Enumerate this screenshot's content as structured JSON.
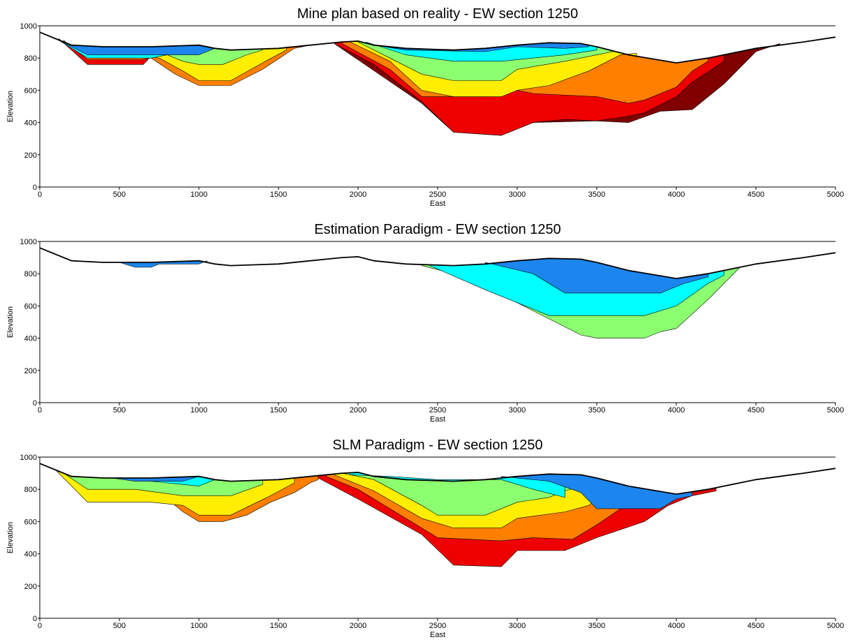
{
  "chart_data": [
    {
      "type": "section",
      "title": "Mine plan based on reality - EW section 1250",
      "xlabel": "East",
      "ylabel": "Elevation",
      "xlim": [
        0,
        5000
      ],
      "ylim": [
        0,
        1000
      ],
      "xticks": [
        0,
        500,
        1000,
        1500,
        2000,
        2500,
        3000,
        3500,
        4000,
        4500,
        5000
      ],
      "yticks": [
        0,
        200,
        400,
        600,
        800,
        1000
      ],
      "topography": {
        "color": "#000000",
        "x": [
          0,
          100,
          200,
          400,
          700,
          1000,
          1100,
          1200,
          1500,
          1700,
          1900,
          2000,
          2100,
          2300,
          2600,
          2800,
          3000,
          3200,
          3400,
          3500,
          3700,
          4000,
          4200,
          4500,
          4800,
          5000
        ],
        "y": [
          960,
          920,
          880,
          870,
          870,
          880,
          860,
          850,
          860,
          880,
          900,
          905,
          880,
          860,
          850,
          860,
          880,
          895,
          890,
          870,
          820,
          770,
          800,
          860,
          900,
          930
        ]
      },
      "series": [
        {
          "color": "#ee0000",
          "x": [
            120,
            300,
            650,
            680
          ],
          "y": [
            920,
            760,
            760,
            790
          ]
        },
        {
          "color": "#ff7f00",
          "x": [
            150,
            300,
            640,
            700,
            850,
            1000,
            1200,
            1400,
            1600,
            1700
          ],
          "y": [
            910,
            790,
            790,
            800,
            700,
            630,
            630,
            730,
            860,
            880
          ]
        },
        {
          "color": "#ffee00",
          "x": [
            680,
            750,
            900,
            1000,
            1200,
            1400,
            1550
          ],
          "y": [
            810,
            800,
            720,
            660,
            660,
            770,
            850
          ]
        },
        {
          "color": "#8cff70",
          "x": [
            700,
            800,
            900,
            1000,
            1150,
            1300,
            1400
          ],
          "y": [
            820,
            820,
            780,
            760,
            760,
            820,
            850
          ]
        },
        {
          "color": "#00ffff",
          "x": [
            120,
            300,
            700,
            800
          ],
          "y": [
            910,
            800,
            800,
            820
          ]
        },
        {
          "color": "#1c86ee",
          "x": [
            100,
            300,
            700,
            1000,
            1100,
            1200
          ],
          "y": [
            920,
            820,
            820,
            820,
            860,
            850
          ]
        },
        {
          "color": "#800000",
          "x": [
            1850,
            2400,
            2600,
            2900,
            3100,
            3500,
            3700,
            3900,
            4100,
            4300,
            4500,
            4650
          ],
          "y": [
            890,
            520,
            340,
            320,
            400,
            410,
            400,
            470,
            480,
            640,
            840,
            890
          ]
        },
        {
          "color": "#ee0000",
          "x": [
            1850,
            2100,
            2400,
            2600,
            2900,
            3100,
            3300,
            3500,
            3700,
            3800,
            4000,
            4100,
            4300
          ],
          "y": [
            890,
            760,
            530,
            340,
            320,
            400,
            420,
            410,
            440,
            460,
            560,
            650,
            780
          ]
        },
        {
          "color": "#ff7f00",
          "x": [
            1900,
            2200,
            2400,
            2800,
            2900,
            3100,
            3500,
            3700,
            3800,
            4000,
            4100,
            4200
          ],
          "y": [
            890,
            730,
            560,
            560,
            620,
            580,
            560,
            520,
            540,
            620,
            720,
            780
          ]
        },
        {
          "color": "#ffee00",
          "x": [
            1950,
            2200,
            2400,
            2600,
            2900,
            3000,
            3200,
            3450,
            3650,
            3750
          ],
          "y": [
            900,
            780,
            600,
            560,
            560,
            600,
            630,
            720,
            820,
            830
          ]
        },
        {
          "color": "#8cff70",
          "x": [
            2000,
            2200,
            2400,
            2600,
            2900,
            3000,
            3300,
            3500,
            3600
          ],
          "y": [
            900,
            800,
            700,
            660,
            660,
            730,
            780,
            820,
            840
          ]
        },
        {
          "color": "#00ffff",
          "x": [
            2050,
            2300,
            2600,
            2900,
            3100,
            3300,
            3500
          ],
          "y": [
            900,
            820,
            780,
            780,
            800,
            820,
            850
          ]
        },
        {
          "color": "#1c86ee",
          "x": [
            2100,
            2300,
            2800,
            3000,
            3300,
            3450
          ],
          "y": [
            880,
            850,
            840,
            870,
            860,
            870
          ]
        }
      ]
    },
    {
      "type": "section",
      "title": "Estimation Paradigm - EW section 1250",
      "xlabel": "East",
      "ylabel": "Elevation",
      "xlim": [
        0,
        5000
      ],
      "ylim": [
        0,
        1000
      ],
      "xticks": [
        0,
        500,
        1000,
        1500,
        2000,
        2500,
        3000,
        3500,
        4000,
        4500,
        5000
      ],
      "yticks": [
        0,
        200,
        400,
        600,
        800,
        1000
      ],
      "topography": {
        "color": "#000000",
        "x": [
          0,
          100,
          200,
          400,
          700,
          1000,
          1100,
          1200,
          1500,
          1700,
          1900,
          2000,
          2100,
          2300,
          2600,
          2800,
          3000,
          3200,
          3400,
          3500,
          3700,
          4000,
          4200,
          4500,
          4800,
          5000
        ],
        "y": [
          960,
          920,
          880,
          870,
          870,
          880,
          860,
          850,
          860,
          880,
          900,
          905,
          880,
          860,
          850,
          860,
          880,
          895,
          890,
          870,
          820,
          770,
          800,
          860,
          900,
          930
        ]
      },
      "series": [
        {
          "color": "#1c86ee",
          "x": [
            500,
            600,
            700,
            750,
            1000,
            1050
          ],
          "y": [
            870,
            840,
            840,
            860,
            860,
            880
          ]
        },
        {
          "color": "#8cff70",
          "x": [
            2400,
            2600,
            3000,
            3400,
            3500,
            3800,
            3900,
            4000,
            4200,
            4400,
            4500
          ],
          "y": [
            850,
            800,
            620,
            420,
            400,
            400,
            440,
            460,
            640,
            840,
            860
          ]
        },
        {
          "color": "#00ffff",
          "x": [
            2450,
            2800,
            3200,
            3800,
            4000,
            4200,
            4300
          ],
          "y": [
            850,
            700,
            540,
            540,
            600,
            740,
            790
          ]
        },
        {
          "color": "#1c86ee",
          "x": [
            2800,
            3100,
            3300,
            3700,
            3900,
            4050,
            4200
          ],
          "y": [
            870,
            800,
            680,
            680,
            680,
            740,
            780
          ]
        }
      ]
    },
    {
      "type": "section",
      "title": "SLM Paradigm - EW section 1250",
      "xlabel": "East",
      "ylabel": "Elevation",
      "xlim": [
        0,
        5000
      ],
      "ylim": [
        0,
        1000
      ],
      "xticks": [
        0,
        500,
        1000,
        1500,
        2000,
        2500,
        3000,
        3500,
        4000,
        4500,
        5000
      ],
      "yticks": [
        0,
        200,
        400,
        600,
        800,
        1000
      ],
      "topography": {
        "color": "#000000",
        "x": [
          0,
          100,
          200,
          400,
          700,
          1000,
          1100,
          1200,
          1500,
          1700,
          1900,
          2000,
          2100,
          2300,
          2600,
          2800,
          3000,
          3200,
          3400,
          3500,
          3700,
          4000,
          4200,
          4500,
          4800,
          5000
        ],
        "y": [
          960,
          920,
          880,
          870,
          870,
          880,
          860,
          850,
          860,
          880,
          900,
          905,
          880,
          860,
          850,
          860,
          880,
          895,
          890,
          870,
          820,
          770,
          800,
          860,
          900,
          930
        ]
      },
      "series": [
        {
          "color": "#ff7f00",
          "x": [
            700,
            750,
            900,
            1000,
            1150,
            1300,
            1450,
            1600,
            1700,
            1750
          ],
          "y": [
            800,
            780,
            660,
            600,
            600,
            640,
            720,
            780,
            840,
            860
          ]
        },
        {
          "color": "#ffee00",
          "x": [
            100,
            300,
            700,
            900,
            1000,
            1200,
            1450,
            1600
          ],
          "y": [
            920,
            720,
            720,
            700,
            640,
            640,
            760,
            840
          ]
        },
        {
          "color": "#8cff70",
          "x": [
            150,
            300,
            600,
            900,
            1200,
            1400
          ],
          "y": [
            900,
            800,
            800,
            760,
            760,
            830
          ]
        },
        {
          "color": "#00ffff",
          "x": [
            600,
            800,
            1000,
            1100
          ],
          "y": [
            860,
            840,
            820,
            860
          ]
        },
        {
          "color": "#1c86ee",
          "x": [
            450,
            600,
            900,
            1000
          ],
          "y": [
            870,
            850,
            850,
            880
          ]
        },
        {
          "color": "#ee0000",
          "x": [
            1750,
            2000,
            2400,
            2600,
            2900,
            3000,
            3300,
            3500,
            3800,
            3950,
            4100,
            4250
          ],
          "y": [
            870,
            740,
            520,
            330,
            320,
            420,
            420,
            500,
            600,
            700,
            760,
            790
          ]
        },
        {
          "color": "#ff7f00",
          "x": [
            1800,
            2000,
            2300,
            2500,
            2900,
            3100,
            3350,
            3500,
            3650,
            3700
          ],
          "y": [
            880,
            800,
            620,
            500,
            480,
            500,
            490,
            580,
            680,
            690
          ]
        },
        {
          "color": "#ffee00",
          "x": [
            1850,
            2100,
            2400,
            2600,
            2900,
            3000,
            3300,
            3450,
            3500
          ],
          "y": [
            890,
            790,
            620,
            560,
            560,
            620,
            660,
            700,
            740
          ]
        },
        {
          "color": "#8cff70",
          "x": [
            1900,
            2100,
            2400,
            2500,
            2800,
            3000,
            3200,
            3300,
            3400
          ],
          "y": [
            900,
            860,
            700,
            640,
            640,
            720,
            750,
            790,
            820
          ]
        },
        {
          "color": "#00ffff",
          "x": [
            1950,
            2200,
            2500,
            2900,
            3100,
            3300
          ],
          "y": [
            890,
            880,
            860,
            860,
            800,
            750
          ]
        },
        {
          "color": "#1c86ee",
          "x": [
            2900,
            3200,
            3400,
            3500,
            3900,
            4000,
            4100
          ],
          "y": [
            880,
            850,
            780,
            680,
            680,
            740,
            760
          ]
        }
      ]
    }
  ]
}
